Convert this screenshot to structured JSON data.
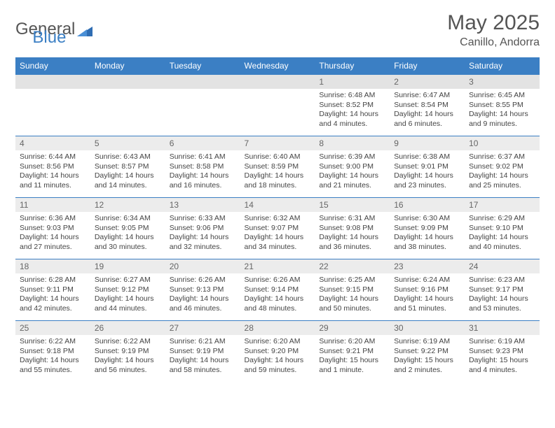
{
  "logo": {
    "text1": "General",
    "text2": "Blue"
  },
  "title": {
    "month": "May 2025",
    "location": "Canillo, Andorra"
  },
  "colors": {
    "header_bg": "#3b7fc4",
    "header_fg": "#ffffff",
    "daynum_bg": "#ececec",
    "border": "#3b7fc4",
    "text": "#444444"
  },
  "weekdays": [
    "Sunday",
    "Monday",
    "Tuesday",
    "Wednesday",
    "Thursday",
    "Friday",
    "Saturday"
  ],
  "weeks": [
    [
      {
        "n": "",
        "l1": "",
        "l2": "",
        "l3": "",
        "l4": ""
      },
      {
        "n": "",
        "l1": "",
        "l2": "",
        "l3": "",
        "l4": ""
      },
      {
        "n": "",
        "l1": "",
        "l2": "",
        "l3": "",
        "l4": ""
      },
      {
        "n": "",
        "l1": "",
        "l2": "",
        "l3": "",
        "l4": ""
      },
      {
        "n": "1",
        "l1": "Sunrise: 6:48 AM",
        "l2": "Sunset: 8:52 PM",
        "l3": "Daylight: 14 hours",
        "l4": "and 4 minutes."
      },
      {
        "n": "2",
        "l1": "Sunrise: 6:47 AM",
        "l2": "Sunset: 8:54 PM",
        "l3": "Daylight: 14 hours",
        "l4": "and 6 minutes."
      },
      {
        "n": "3",
        "l1": "Sunrise: 6:45 AM",
        "l2": "Sunset: 8:55 PM",
        "l3": "Daylight: 14 hours",
        "l4": "and 9 minutes."
      }
    ],
    [
      {
        "n": "4",
        "l1": "Sunrise: 6:44 AM",
        "l2": "Sunset: 8:56 PM",
        "l3": "Daylight: 14 hours",
        "l4": "and 11 minutes."
      },
      {
        "n": "5",
        "l1": "Sunrise: 6:43 AM",
        "l2": "Sunset: 8:57 PM",
        "l3": "Daylight: 14 hours",
        "l4": "and 14 minutes."
      },
      {
        "n": "6",
        "l1": "Sunrise: 6:41 AM",
        "l2": "Sunset: 8:58 PM",
        "l3": "Daylight: 14 hours",
        "l4": "and 16 minutes."
      },
      {
        "n": "7",
        "l1": "Sunrise: 6:40 AM",
        "l2": "Sunset: 8:59 PM",
        "l3": "Daylight: 14 hours",
        "l4": "and 18 minutes."
      },
      {
        "n": "8",
        "l1": "Sunrise: 6:39 AM",
        "l2": "Sunset: 9:00 PM",
        "l3": "Daylight: 14 hours",
        "l4": "and 21 minutes."
      },
      {
        "n": "9",
        "l1": "Sunrise: 6:38 AM",
        "l2": "Sunset: 9:01 PM",
        "l3": "Daylight: 14 hours",
        "l4": "and 23 minutes."
      },
      {
        "n": "10",
        "l1": "Sunrise: 6:37 AM",
        "l2": "Sunset: 9:02 PM",
        "l3": "Daylight: 14 hours",
        "l4": "and 25 minutes."
      }
    ],
    [
      {
        "n": "11",
        "l1": "Sunrise: 6:36 AM",
        "l2": "Sunset: 9:03 PM",
        "l3": "Daylight: 14 hours",
        "l4": "and 27 minutes."
      },
      {
        "n": "12",
        "l1": "Sunrise: 6:34 AM",
        "l2": "Sunset: 9:05 PM",
        "l3": "Daylight: 14 hours",
        "l4": "and 30 minutes."
      },
      {
        "n": "13",
        "l1": "Sunrise: 6:33 AM",
        "l2": "Sunset: 9:06 PM",
        "l3": "Daylight: 14 hours",
        "l4": "and 32 minutes."
      },
      {
        "n": "14",
        "l1": "Sunrise: 6:32 AM",
        "l2": "Sunset: 9:07 PM",
        "l3": "Daylight: 14 hours",
        "l4": "and 34 minutes."
      },
      {
        "n": "15",
        "l1": "Sunrise: 6:31 AM",
        "l2": "Sunset: 9:08 PM",
        "l3": "Daylight: 14 hours",
        "l4": "and 36 minutes."
      },
      {
        "n": "16",
        "l1": "Sunrise: 6:30 AM",
        "l2": "Sunset: 9:09 PM",
        "l3": "Daylight: 14 hours",
        "l4": "and 38 minutes."
      },
      {
        "n": "17",
        "l1": "Sunrise: 6:29 AM",
        "l2": "Sunset: 9:10 PM",
        "l3": "Daylight: 14 hours",
        "l4": "and 40 minutes."
      }
    ],
    [
      {
        "n": "18",
        "l1": "Sunrise: 6:28 AM",
        "l2": "Sunset: 9:11 PM",
        "l3": "Daylight: 14 hours",
        "l4": "and 42 minutes."
      },
      {
        "n": "19",
        "l1": "Sunrise: 6:27 AM",
        "l2": "Sunset: 9:12 PM",
        "l3": "Daylight: 14 hours",
        "l4": "and 44 minutes."
      },
      {
        "n": "20",
        "l1": "Sunrise: 6:26 AM",
        "l2": "Sunset: 9:13 PM",
        "l3": "Daylight: 14 hours",
        "l4": "and 46 minutes."
      },
      {
        "n": "21",
        "l1": "Sunrise: 6:26 AM",
        "l2": "Sunset: 9:14 PM",
        "l3": "Daylight: 14 hours",
        "l4": "and 48 minutes."
      },
      {
        "n": "22",
        "l1": "Sunrise: 6:25 AM",
        "l2": "Sunset: 9:15 PM",
        "l3": "Daylight: 14 hours",
        "l4": "and 50 minutes."
      },
      {
        "n": "23",
        "l1": "Sunrise: 6:24 AM",
        "l2": "Sunset: 9:16 PM",
        "l3": "Daylight: 14 hours",
        "l4": "and 51 minutes."
      },
      {
        "n": "24",
        "l1": "Sunrise: 6:23 AM",
        "l2": "Sunset: 9:17 PM",
        "l3": "Daylight: 14 hours",
        "l4": "and 53 minutes."
      }
    ],
    [
      {
        "n": "25",
        "l1": "Sunrise: 6:22 AM",
        "l2": "Sunset: 9:18 PM",
        "l3": "Daylight: 14 hours",
        "l4": "and 55 minutes."
      },
      {
        "n": "26",
        "l1": "Sunrise: 6:22 AM",
        "l2": "Sunset: 9:19 PM",
        "l3": "Daylight: 14 hours",
        "l4": "and 56 minutes."
      },
      {
        "n": "27",
        "l1": "Sunrise: 6:21 AM",
        "l2": "Sunset: 9:19 PM",
        "l3": "Daylight: 14 hours",
        "l4": "and 58 minutes."
      },
      {
        "n": "28",
        "l1": "Sunrise: 6:20 AM",
        "l2": "Sunset: 9:20 PM",
        "l3": "Daylight: 14 hours",
        "l4": "and 59 minutes."
      },
      {
        "n": "29",
        "l1": "Sunrise: 6:20 AM",
        "l2": "Sunset: 9:21 PM",
        "l3": "Daylight: 15 hours",
        "l4": "and 1 minute."
      },
      {
        "n": "30",
        "l1": "Sunrise: 6:19 AM",
        "l2": "Sunset: 9:22 PM",
        "l3": "Daylight: 15 hours",
        "l4": "and 2 minutes."
      },
      {
        "n": "31",
        "l1": "Sunrise: 6:19 AM",
        "l2": "Sunset: 9:23 PM",
        "l3": "Daylight: 15 hours",
        "l4": "and 4 minutes."
      }
    ]
  ]
}
